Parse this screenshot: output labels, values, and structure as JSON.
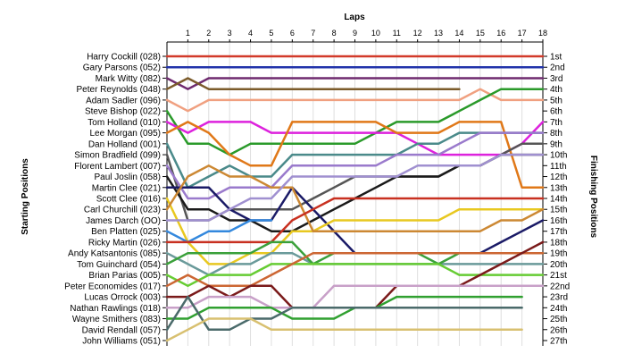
{
  "chart_data": {
    "type": "line",
    "title": "Laps",
    "ylabel_left": "Starting Positions",
    "ylabel_right": "Finishing Positions",
    "x": [
      0,
      1,
      2,
      3,
      4,
      5,
      6,
      7,
      8,
      9,
      10,
      11,
      12,
      13,
      14,
      15,
      16,
      17,
      18
    ],
    "x_tick_labels": [
      "1",
      "2",
      "3",
      "4",
      "5",
      "6",
      "7",
      "8",
      "9",
      "10",
      "11",
      "12",
      "13",
      "14",
      "15",
      "16",
      "17",
      "18"
    ],
    "xlim": [
      0,
      18
    ],
    "ylim": [
      1,
      27
    ],
    "grid": true,
    "finishing_positions": [
      "1st",
      "2nd",
      "3rd",
      "4th",
      "5th",
      "6th",
      "7th",
      "8th",
      "9th",
      "10th",
      "11th",
      "12th",
      "13th",
      "14th",
      "15th",
      "16th",
      "17th",
      "18th",
      "19th",
      "20th",
      "21st",
      "22nd",
      "23rd",
      "24th",
      "25th",
      "26th",
      "27th"
    ],
    "series": [
      {
        "name": "Harry Cockill (028)",
        "color": "#d23a2a",
        "values": [
          1,
          1,
          1,
          1,
          1,
          1,
          1,
          1,
          1,
          1,
          1,
          1,
          1,
          1,
          1,
          1,
          1,
          1,
          1
        ]
      },
      {
        "name": "Gary Parsons (052)",
        "color": "#2233aa",
        "values": [
          2,
          2,
          2,
          2,
          2,
          2,
          2,
          2,
          2,
          2,
          2,
          2,
          2,
          2,
          2,
          2,
          2,
          2,
          2
        ]
      },
      {
        "name": "Mark Witty (082)",
        "color": "#6e2a6e",
        "values": [
          3,
          4,
          3,
          3,
          3,
          3,
          3,
          3,
          3,
          3,
          3,
          3,
          3,
          3,
          3,
          3,
          3,
          3,
          3
        ]
      },
      {
        "name": "Peter Reynolds (048)",
        "color": "#7b5b2a",
        "values": [
          4,
          3,
          4,
          4,
          4,
          4,
          4,
          4,
          4,
          4,
          4,
          4,
          4,
          4,
          4,
          null,
          null,
          null,
          null
        ]
      },
      {
        "name": "Adam Sadler (096)",
        "color": "#f0a080",
        "values": [
          5,
          6,
          5,
          5,
          5,
          5,
          5,
          5,
          5,
          5,
          5,
          5,
          5,
          5,
          5,
          4,
          5,
          5,
          5
        ]
      },
      {
        "name": "Steve Bishop (022)",
        "color": "#2a9a2a",
        "values": [
          6,
          9,
          9,
          10,
          9,
          9,
          9,
          9,
          9,
          9,
          8,
          7,
          7,
          7,
          6,
          5,
          4,
          4,
          4
        ]
      },
      {
        "name": "Tom Holland (010)",
        "color": "#dd22dd",
        "values": [
          7,
          8,
          7,
          7,
          7,
          8,
          8,
          8,
          8,
          8,
          8,
          8,
          9,
          10,
          10,
          10,
          10,
          9,
          7
        ]
      },
      {
        "name": "Lee Morgan (095)",
        "color": "#e07818",
        "values": [
          8,
          7,
          8,
          10,
          11,
          11,
          7,
          7,
          7,
          7,
          7,
          8,
          8,
          8,
          7,
          7,
          7,
          13,
          13
        ]
      },
      {
        "name": "Dan Holland (001)",
        "color": "#4a8a8a",
        "values": [
          9,
          13,
          12,
          11,
          12,
          12,
          10,
          10,
          10,
          10,
          10,
          10,
          9,
          9,
          8,
          8,
          8,
          8,
          8
        ]
      },
      {
        "name": "Simon Bradfield (099)",
        "color": "#555555",
        "values": [
          10,
          16,
          16,
          15,
          15,
          15,
          15,
          14,
          13,
          12,
          12,
          12,
          12,
          12,
          11,
          11,
          10,
          9,
          9
        ]
      },
      {
        "name": "Florent Lambert (007)",
        "color": "#9a7acc",
        "values": [
          11,
          14,
          14,
          13,
          13,
          13,
          11,
          11,
          11,
          11,
          11,
          10,
          10,
          10,
          9,
          8,
          8,
          8,
          8
        ]
      },
      {
        "name": "Paul Joslin (058)",
        "color": "#1a1a1a",
        "values": [
          12,
          15,
          15,
          16,
          16,
          17,
          17,
          16,
          15,
          14,
          13,
          12,
          12,
          12,
          11,
          11,
          10,
          10,
          10
        ]
      },
      {
        "name": "Martin Clee (021)",
        "color": "#1a1a66",
        "values": [
          13,
          13,
          13,
          15,
          16,
          16,
          13,
          15,
          17,
          19,
          19,
          19,
          19,
          19,
          19,
          19,
          18,
          17,
          16
        ]
      },
      {
        "name": "Scott Clee (016)",
        "color": "#e8c820",
        "values": [
          14,
          18,
          20,
          20,
          19,
          19,
          17,
          17,
          16,
          16,
          16,
          16,
          16,
          16,
          15,
          15,
          15,
          15,
          15
        ]
      },
      {
        "name": "Carl Churchill (023)",
        "color": "#cc8833",
        "values": [
          15,
          12,
          11,
          12,
          12,
          13,
          13,
          17,
          17,
          17,
          17,
          17,
          17,
          17,
          17,
          17,
          16,
          16,
          15
        ]
      },
      {
        "name": "James Darch (OO)",
        "color": "#a090d0",
        "values": [
          16,
          16,
          16,
          15,
          14,
          14,
          12,
          12,
          12,
          12,
          12,
          12,
          11,
          11,
          11,
          11,
          10,
          10,
          10
        ]
      },
      {
        "name": "Ben Platten (025)",
        "color": "#3388dd",
        "values": [
          17,
          18,
          17,
          17,
          16,
          16,
          null,
          null,
          null,
          null,
          null,
          null,
          null,
          null,
          null,
          null,
          null,
          null,
          null
        ]
      },
      {
        "name": "Ricky Martin (026)",
        "color": "#c83020",
        "values": [
          18,
          18,
          18,
          18,
          18,
          18,
          16,
          15,
          14,
          14,
          14,
          14,
          14,
          14,
          14,
          14,
          14,
          14,
          14
        ]
      },
      {
        "name": "Andy Katsantonis (085)",
        "color": "#6a9a9a",
        "values": [
          19,
          20,
          21,
          20,
          20,
          19,
          19,
          20,
          20,
          20,
          20,
          20,
          20,
          20,
          20,
          20,
          20,
          20,
          20
        ]
      },
      {
        "name": "Tom Guinchard (054)",
        "color": "#3aa03a",
        "values": [
          20,
          19,
          19,
          19,
          19,
          18,
          18,
          20,
          19,
          19,
          19,
          19,
          19,
          20,
          19,
          19,
          19,
          19,
          19
        ]
      },
      {
        "name": "Brian Parias (005)",
        "color": "#66cc33",
        "values": [
          21,
          22,
          21,
          21,
          21,
          20,
          20,
          20,
          20,
          20,
          20,
          20,
          20,
          20,
          21,
          21,
          21,
          21,
          21
        ]
      },
      {
        "name": "Peter Economides (017)",
        "color": "#cc6633",
        "values": [
          22,
          21,
          22,
          22,
          22,
          21,
          20,
          19,
          19,
          19,
          19,
          19,
          19,
          19,
          19,
          19,
          19,
          19,
          19
        ]
      },
      {
        "name": "Lucas Orrock (003)",
        "color": "#7a1a1a",
        "values": [
          23,
          23,
          22,
          23,
          22,
          22,
          24,
          24,
          24,
          24,
          24,
          22,
          22,
          22,
          22,
          21,
          20,
          19,
          18
        ]
      },
      {
        "name": "Nathan Rawlings (018)",
        "color": "#c8a0c8",
        "values": [
          24,
          24,
          23,
          23,
          23,
          24,
          24,
          24,
          22,
          22,
          22,
          22,
          22,
          22,
          22,
          22,
          22,
          22,
          22
        ]
      },
      {
        "name": "Wayne Smithers (083)",
        "color": "#30a030",
        "values": [
          25,
          25,
          24,
          24,
          24,
          24,
          25,
          25,
          25,
          24,
          24,
          23,
          23,
          23,
          23,
          23,
          23,
          23,
          null
        ]
      },
      {
        "name": "David Rendall (057)",
        "color": "#4a6a6a",
        "values": [
          26,
          23,
          26,
          26,
          25,
          25,
          24,
          24,
          24,
          24,
          24,
          24,
          24,
          24,
          24,
          24,
          24,
          24,
          null
        ]
      },
      {
        "name": "John Williams (051)",
        "color": "#d8c070",
        "values": [
          27,
          26,
          25,
          25,
          25,
          26,
          26,
          26,
          26,
          26,
          26,
          26,
          26,
          26,
          26,
          26,
          26,
          26,
          null
        ]
      }
    ]
  }
}
